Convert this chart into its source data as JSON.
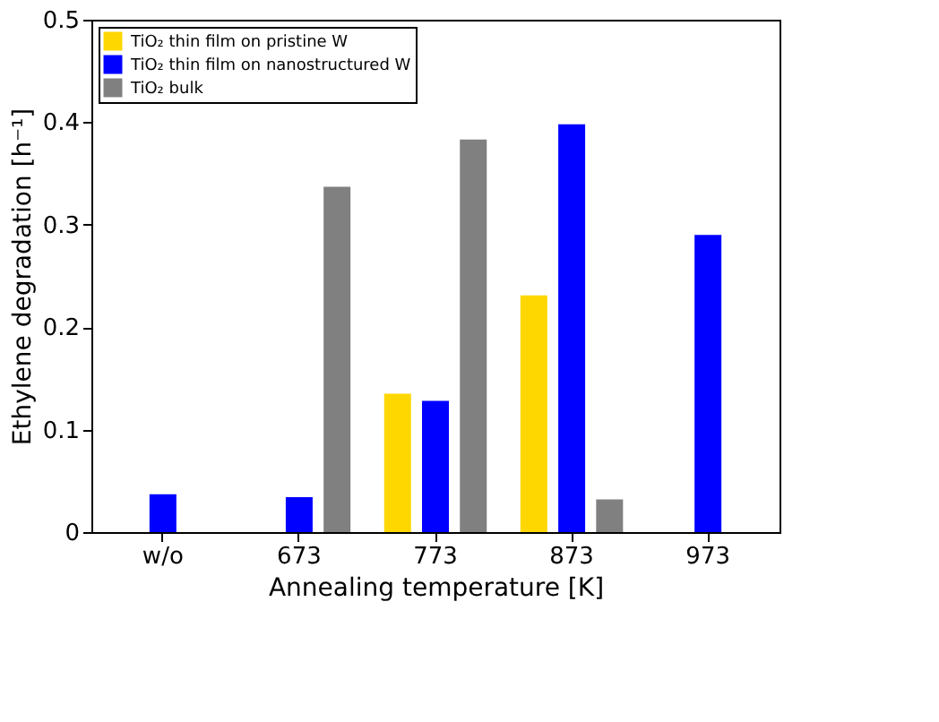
{
  "chart_data": {
    "type": "bar",
    "xlabel": "Annealing temperature [K]",
    "ylabel": "Ethylene degradation [h⁻¹]",
    "categories": [
      "w/o",
      "673",
      "773",
      "873",
      "973"
    ],
    "series": [
      {
        "name": "TiO₂ thin film on pristine W",
        "color": "#ffd700",
        "values": [
          null,
          null,
          0.135,
          0.231,
          null
        ]
      },
      {
        "name": "TiO₂ thin film on nanostructured W",
        "color": "#0000ff",
        "values": [
          0.037,
          0.034,
          0.128,
          0.398,
          0.29
        ]
      },
      {
        "name": "TiO₂ bulk",
        "color": "#808080",
        "values": [
          null,
          0.337,
          0.383,
          0.032,
          null
        ]
      }
    ],
    "ylim": [
      0,
      0.5
    ],
    "yticks": [
      0,
      0.1,
      0.2,
      0.3,
      0.4,
      0.5
    ],
    "legend": "top left",
    "grid": false
  }
}
